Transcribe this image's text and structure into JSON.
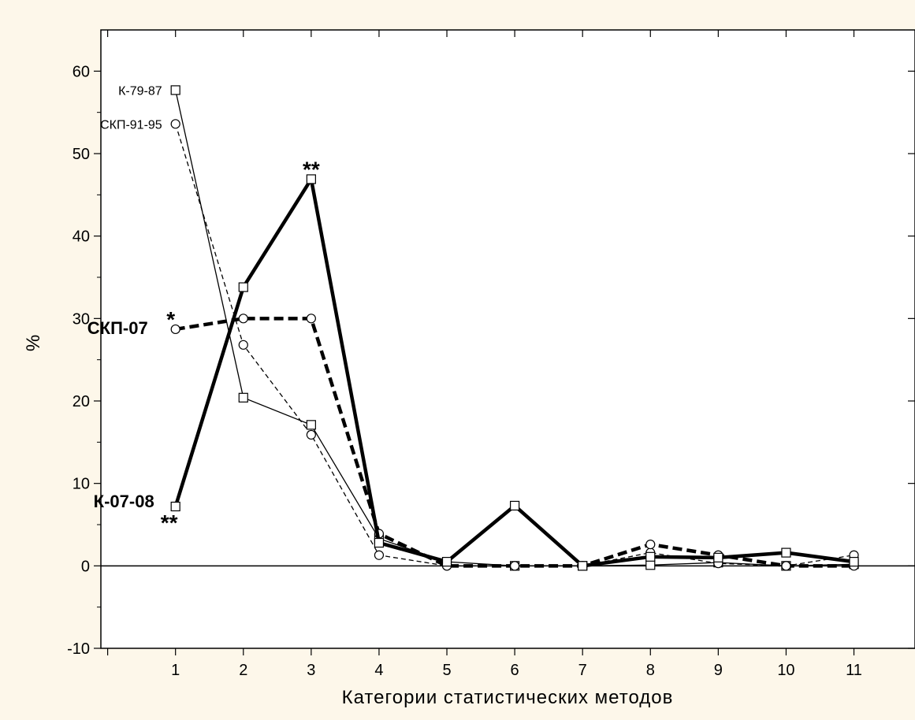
{
  "chart_data": {
    "type": "line",
    "title": "",
    "xlabel": "Категории статистических методов",
    "ylabel": "%",
    "x": [
      1,
      2,
      3,
      4,
      5,
      6,
      7,
      8,
      9,
      10,
      11
    ],
    "xlim": [
      -0.1,
      11.9
    ],
    "ylim": [
      -10,
      65
    ],
    "yticks": [
      -10,
      0,
      10,
      20,
      30,
      40,
      50,
      60
    ],
    "series": [
      {
        "name": "К-79-87",
        "style": "thin-solid",
        "marker": "square",
        "values": [
          57.7,
          20.4,
          17.1,
          3.3,
          0.5,
          0.0,
          0.0,
          0.1,
          0.4,
          0.0,
          0.2
        ]
      },
      {
        "name": "СКП-91-95",
        "style": "thin-dashed",
        "marker": "circle",
        "values": [
          53.6,
          26.8,
          15.9,
          1.3,
          0.0,
          0.0,
          0.0,
          1.6,
          0.3,
          0.0,
          1.3
        ]
      },
      {
        "name": "СКП-07",
        "style": "thick-dashed",
        "marker": "circle",
        "values": [
          28.7,
          30.0,
          30.0,
          3.9,
          0.0,
          0.0,
          0.0,
          2.6,
          1.3,
          0.0,
          0.0
        ]
      },
      {
        "name": "К-07-08",
        "style": "thick-solid",
        "marker": "square",
        "values": [
          7.2,
          33.8,
          46.9,
          2.8,
          0.5,
          7.3,
          0.0,
          1.1,
          1.0,
          1.6,
          0.5
        ]
      }
    ],
    "annotations": [
      {
        "text": "**",
        "series": "К-07-08",
        "x": 3,
        "position": "above"
      },
      {
        "text": "*",
        "series": "СКП-07",
        "x": 1,
        "position": "above-left"
      },
      {
        "text": "**",
        "series": "К-07-08",
        "x": 1,
        "position": "below"
      }
    ],
    "grid": false,
    "legend": "inline-labels"
  }
}
